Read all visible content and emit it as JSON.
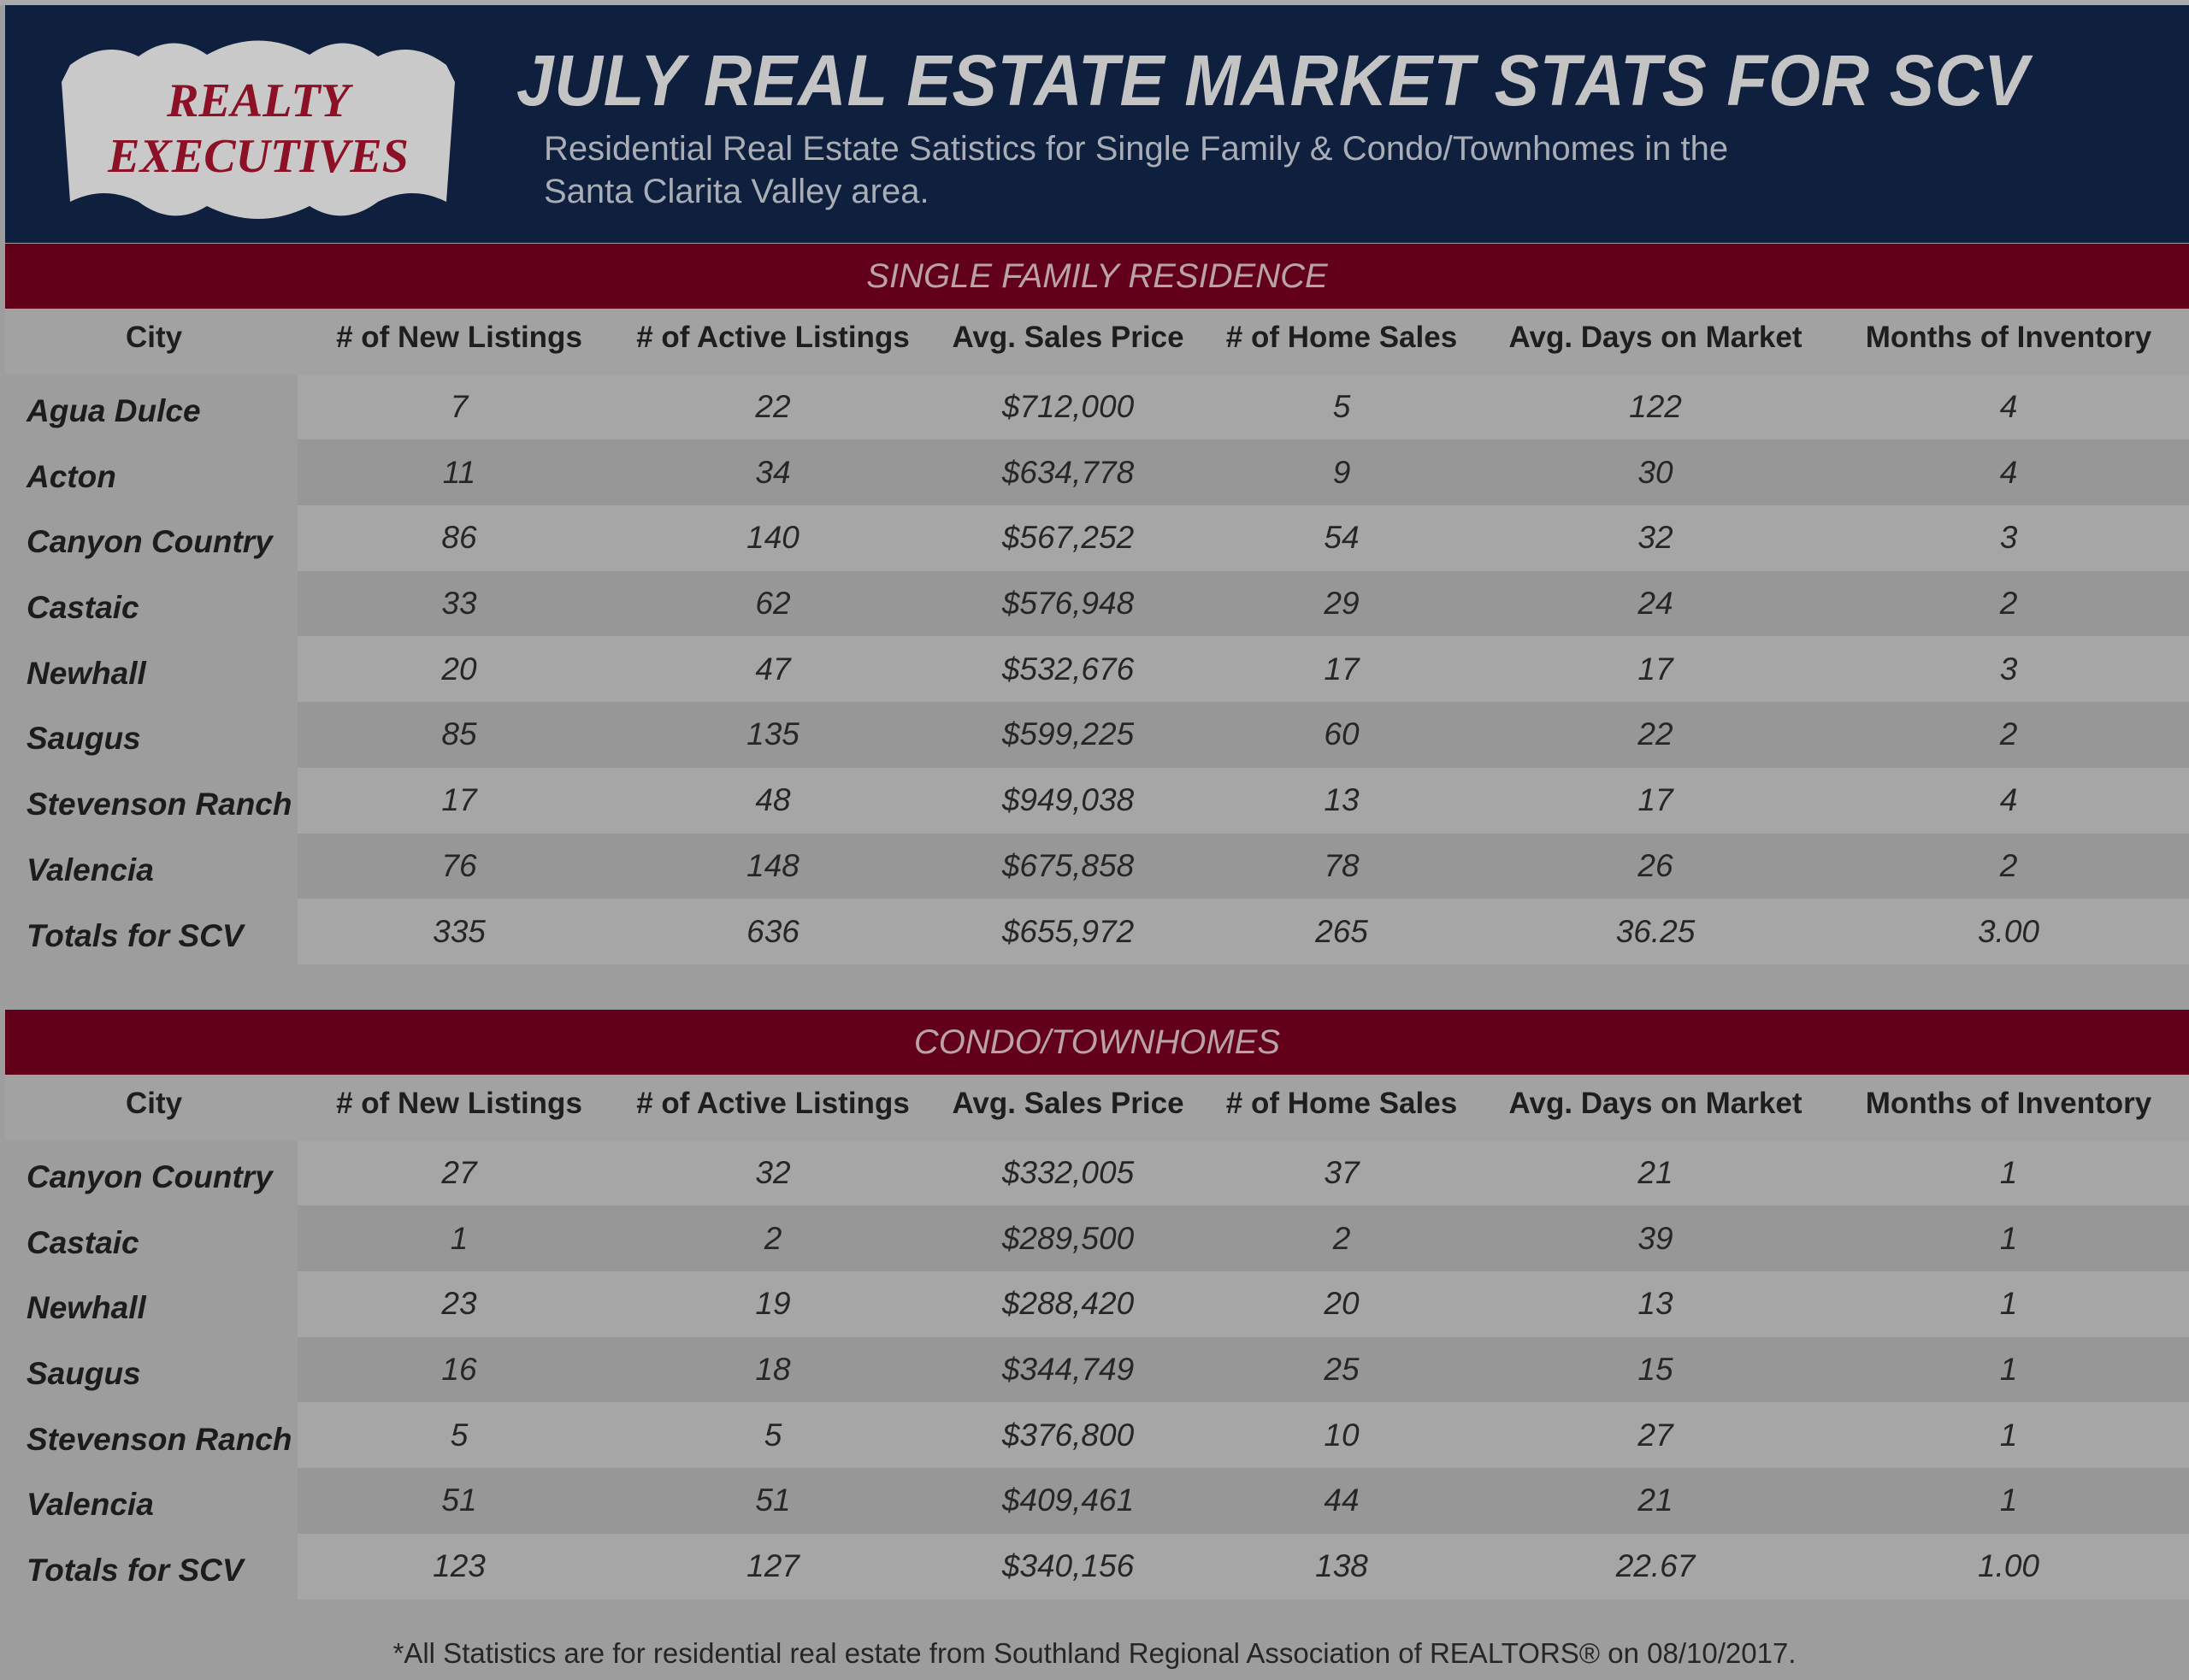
{
  "header": {
    "logo_text": "REALTY EXECUTIVES",
    "title": "JULY REAL ESTATE MARKET STATS FOR SCV",
    "subtitle_line1": "Residential Real Estate Satistics for Single Family & Condo/Townhomes in the",
    "subtitle_line2": "Santa Clarita Valley area."
  },
  "colors": {
    "navy": "#0f1f3e",
    "red_band": "#62001a",
    "logo_red": "#8c1026"
  },
  "columns": [
    "City",
    "# of New Listings",
    "# of Active Listings",
    "Avg. Sales Price",
    "# of Home Sales",
    "Avg. Days on Market",
    "Months of Inventory"
  ],
  "sections": [
    {
      "title": "SINGLE FAMILY RESIDENCE",
      "rows": [
        [
          "Agua Dulce",
          "7",
          "22",
          "$712,000",
          "5",
          "122",
          "4"
        ],
        [
          "Acton",
          "11",
          "34",
          "$634,778",
          "9",
          "30",
          "4"
        ],
        [
          "Canyon Country",
          "86",
          "140",
          "$567,252",
          "54",
          "32",
          "3"
        ],
        [
          "Castaic",
          "33",
          "62",
          "$576,948",
          "29",
          "24",
          "2"
        ],
        [
          "Newhall",
          "20",
          "47",
          "$532,676",
          "17",
          "17",
          "3"
        ],
        [
          "Saugus",
          "85",
          "135",
          "$599,225",
          "60",
          "22",
          "2"
        ],
        [
          "Stevenson Ranch",
          "17",
          "48",
          "$949,038",
          "13",
          "17",
          "4"
        ],
        [
          "Valencia",
          "76",
          "148",
          "$675,858",
          "78",
          "26",
          "2"
        ],
        [
          "Totals for SCV",
          "335",
          "636",
          "$655,972",
          "265",
          "36.25",
          "3.00"
        ]
      ]
    },
    {
      "title": "CONDO/TOWNHOMES",
      "rows": [
        [
          "Canyon Country",
          "27",
          "32",
          "$332,005",
          "37",
          "21",
          "1"
        ],
        [
          "Castaic",
          "1",
          "2",
          "$289,500",
          "2",
          "39",
          "1"
        ],
        [
          "Newhall",
          "23",
          "19",
          "$288,420",
          "20",
          "13",
          "1"
        ],
        [
          "Saugus",
          "16",
          "18",
          "$344,749",
          "25",
          "15",
          "1"
        ],
        [
          "Stevenson Ranch",
          "5",
          "5",
          "$376,800",
          "10",
          "27",
          "1"
        ],
        [
          "Valencia",
          "51",
          "51",
          "$409,461",
          "44",
          "21",
          "1"
        ],
        [
          "Totals for SCV",
          "123",
          "127",
          "$340,156",
          "138",
          "22.67",
          "1.00"
        ]
      ]
    }
  ],
  "footer": "*All Statistics are for residential real estate from Southland Regional Association of REALTORS® on 08/10/2017."
}
